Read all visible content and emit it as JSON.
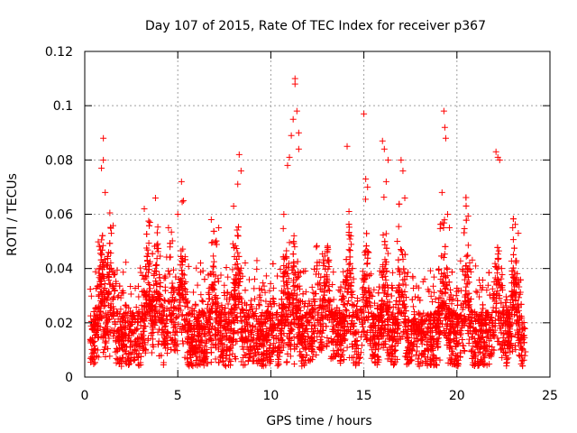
{
  "chart_data": {
    "type": "scatter",
    "title": "Day 107 of 2015, Rate Of TEC Index for receiver p367",
    "xlabel": "GPS time / hours",
    "ylabel": "ROTI / TECUs",
    "xlim": [
      0,
      25
    ],
    "ylim": [
      0,
      0.12
    ],
    "xticks": [
      "0",
      "5",
      "10",
      "15",
      "20",
      "25"
    ],
    "yticks": [
      "0",
      "0.02",
      "0.04",
      "0.06",
      "0.08",
      "0.1",
      "0.12"
    ],
    "grid": true,
    "marker": "+",
    "color": "#ff0000",
    "series": [
      {
        "name": "ROTI",
        "x": [
          0.9,
          1.0,
          1.0,
          1.1,
          3.2,
          3.5,
          3.8,
          4.5,
          5.0,
          5.2,
          5.3,
          6.8,
          7.2,
          8.0,
          8.3,
          8.4,
          10.7,
          10.9,
          11.0,
          11.1,
          11.2,
          11.3,
          11.3,
          11.4,
          11.5,
          11.5,
          14.1,
          14.2,
          14.3,
          15.0,
          15.1,
          15.2,
          16.0,
          16.1,
          16.2,
          16.3,
          17.0,
          17.1,
          17.2,
          19.2,
          19.3,
          19.35,
          19.4,
          19.5,
          19.6,
          22.1,
          22.2,
          22.3,
          23.0,
          23.3
        ],
        "y": [
          0.077,
          0.088,
          0.08,
          0.068,
          0.062,
          0.057,
          0.066,
          0.055,
          0.06,
          0.072,
          0.065,
          0.058,
          0.055,
          0.063,
          0.082,
          0.076,
          0.06,
          0.078,
          0.081,
          0.089,
          0.095,
          0.108,
          0.11,
          0.098,
          0.084,
          0.09,
          0.085,
          0.061,
          0.052,
          0.097,
          0.073,
          0.07,
          0.087,
          0.084,
          0.072,
          0.08,
          0.08,
          0.076,
          0.066,
          0.068,
          0.098,
          0.092,
          0.088,
          0.06,
          0.055,
          0.083,
          0.081,
          0.08,
          0.055,
          0.053
        ]
      }
    ],
    "dense_cloud_hours": [
      0.3,
      23.7
    ]
  }
}
